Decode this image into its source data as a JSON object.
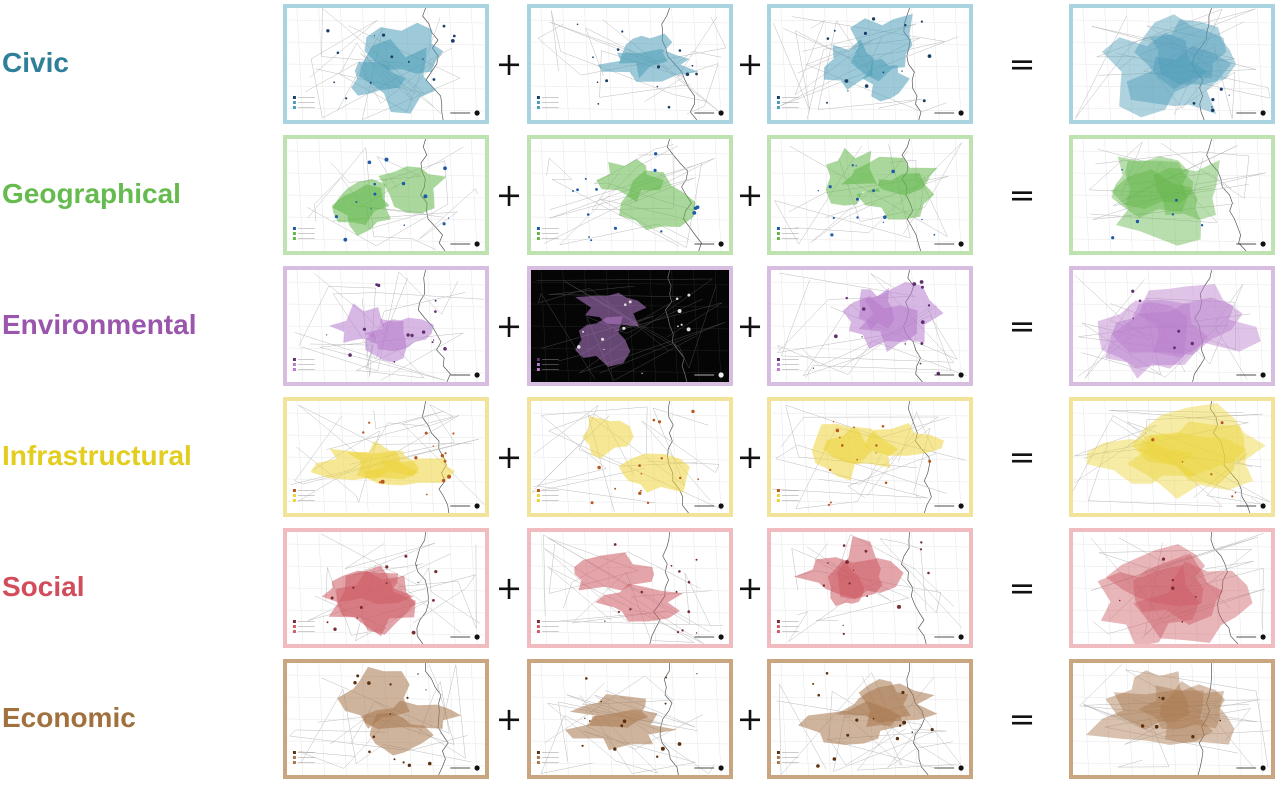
{
  "operators": {
    "plus": "+",
    "equals": "="
  },
  "rows": [
    {
      "label": "Civic",
      "color": "#2e7f9a",
      "frame": "#a9d3de",
      "fill": "#4d9cb8",
      "mark": "#1b3f66"
    },
    {
      "label": "Geographical",
      "color": "#66bb4e",
      "frame": "#bfe3b0",
      "fill": "#63b64a",
      "mark": "#1e5aa8"
    },
    {
      "label": "Environmental",
      "color": "#9a56ad",
      "frame": "#d7bde0",
      "fill": "#b77ccc",
      "mark": "#5f2f70"
    },
    {
      "label": "Infrastructural",
      "color": "#e3cd1f",
      "frame": "#f2e39a",
      "fill": "#ecd43a",
      "mark": "#b8561e"
    },
    {
      "label": "Social",
      "color": "#d24d5b",
      "frame": "#f1bcbf",
      "fill": "#cd5b64",
      "mark": "#7a2a33"
    },
    {
      "label": "Economic",
      "color": "#a0703f",
      "frame": "#c9a67f",
      "fill": "#a8774d",
      "mark": "#5a2f0c"
    }
  ]
}
